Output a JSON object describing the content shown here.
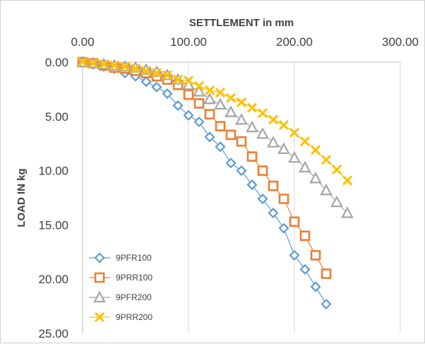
{
  "chart_data": {
    "type": "scatter",
    "x_axis_title": "SETTLEMENT in mm",
    "y_axis_title": "LOAD IN kg",
    "xlim": [
      0,
      300
    ],
    "ylim": [
      0,
      25
    ],
    "x_axis_position": "top",
    "y_axis_reversed": true,
    "grid": "vertical",
    "legend_position": "bottom-left",
    "x_ticks": [
      "0.00",
      "100.00",
      "200.00",
      "300.00"
    ],
    "y_ticks": [
      "0.00",
      "5.00",
      "10.00",
      "15.00",
      "20.00",
      "25.00"
    ],
    "series": [
      {
        "name": "9PFR100",
        "color": "#5b9bd5",
        "marker": "diamond",
        "points": [
          [
            0,
            0
          ],
          [
            10,
            0.2
          ],
          [
            20,
            0.4
          ],
          [
            30,
            0.6
          ],
          [
            40,
            1.0
          ],
          [
            50,
            1.3
          ],
          [
            60,
            1.8
          ],
          [
            70,
            2.3
          ],
          [
            80,
            2.9
          ],
          [
            90,
            4.0
          ],
          [
            100,
            4.9
          ],
          [
            110,
            5.5
          ],
          [
            120,
            6.9
          ],
          [
            130,
            7.8
          ],
          [
            140,
            9.3
          ],
          [
            150,
            10.0
          ],
          [
            160,
            11.3
          ],
          [
            170,
            12.6
          ],
          [
            180,
            13.9
          ],
          [
            190,
            15.3
          ],
          [
            200,
            17.8
          ],
          [
            210,
            19.1
          ],
          [
            220,
            20.7
          ],
          [
            230,
            22.3
          ]
        ]
      },
      {
        "name": "9PRR100",
        "color": "#ed7d31",
        "marker": "square",
        "points": [
          [
            0,
            0
          ],
          [
            10,
            0.1
          ],
          [
            20,
            0.3
          ],
          [
            30,
            0.5
          ],
          [
            40,
            0.6
          ],
          [
            50,
            0.8
          ],
          [
            60,
            1.0
          ],
          [
            70,
            1.3
          ],
          [
            80,
            1.6
          ],
          [
            90,
            2.1
          ],
          [
            100,
            3.0
          ],
          [
            110,
            3.8
          ],
          [
            120,
            4.8
          ],
          [
            130,
            5.9
          ],
          [
            140,
            6.7
          ],
          [
            150,
            7.3
          ],
          [
            160,
            8.7
          ],
          [
            170,
            10.0
          ],
          [
            180,
            11.4
          ],
          [
            190,
            12.6
          ],
          [
            200,
            14.7
          ],
          [
            210,
            16.0
          ],
          [
            220,
            17.8
          ],
          [
            230,
            19.5
          ]
        ]
      },
      {
        "name": "9PFR200",
        "color": "#a5a5a5",
        "marker": "triangle",
        "points": [
          [
            0,
            0
          ],
          [
            10,
            0.1
          ],
          [
            20,
            0.2
          ],
          [
            30,
            0.3
          ],
          [
            40,
            0.4
          ],
          [
            50,
            0.5
          ],
          [
            60,
            0.7
          ],
          [
            70,
            0.9
          ],
          [
            80,
            1.2
          ],
          [
            90,
            1.6
          ],
          [
            100,
            2.1
          ],
          [
            110,
            2.7
          ],
          [
            120,
            3.4
          ],
          [
            130,
            3.9
          ],
          [
            140,
            4.6
          ],
          [
            150,
            5.3
          ],
          [
            160,
            6.0
          ],
          [
            170,
            6.6
          ],
          [
            180,
            7.4
          ],
          [
            190,
            8.0
          ],
          [
            200,
            8.8
          ],
          [
            210,
            9.7
          ],
          [
            220,
            10.7
          ],
          [
            230,
            11.8
          ],
          [
            240,
            12.9
          ],
          [
            250,
            13.9
          ]
        ]
      },
      {
        "name": "9PRR200",
        "color": "#ffc000",
        "marker": "x",
        "points": [
          [
            0,
            0
          ],
          [
            10,
            0.1
          ],
          [
            20,
            0.2
          ],
          [
            30,
            0.3
          ],
          [
            40,
            0.4
          ],
          [
            50,
            0.6
          ],
          [
            60,
            0.8
          ],
          [
            70,
            1.0
          ],
          [
            80,
            1.2
          ],
          [
            90,
            1.6
          ],
          [
            100,
            1.7
          ],
          [
            110,
            2.2
          ],
          [
            120,
            2.6
          ],
          [
            130,
            2.8
          ],
          [
            140,
            3.3
          ],
          [
            150,
            3.7
          ],
          [
            160,
            4.2
          ],
          [
            170,
            4.7
          ],
          [
            180,
            5.3
          ],
          [
            190,
            5.8
          ],
          [
            200,
            6.5
          ],
          [
            210,
            7.3
          ],
          [
            220,
            8.1
          ],
          [
            230,
            9.0
          ],
          [
            240,
            9.9
          ],
          [
            250,
            10.9
          ]
        ]
      }
    ]
  }
}
